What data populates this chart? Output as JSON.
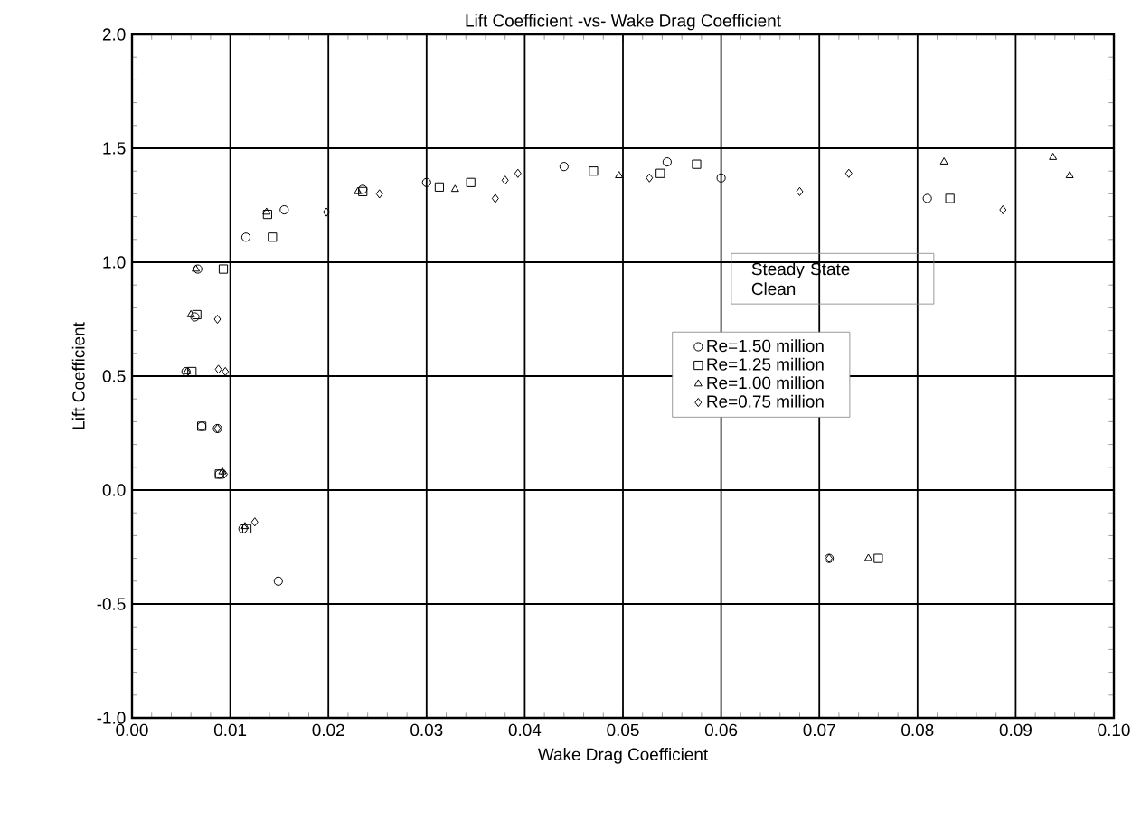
{
  "chart_data": {
    "type": "scatter",
    "title": "Lift Coefficient -vs- Wake Drag Coefficient",
    "xlabel": "Wake Drag Coefficient",
    "ylabel": "Lift Coefficient",
    "annotations": [
      "Steady State\nClean"
    ],
    "xlim": [
      0,
      0.1
    ],
    "ylim": [
      -1.0,
      2.0
    ],
    "xticks": [
      {
        "value": 0,
        "label": "0.00"
      },
      {
        "value": 0.01,
        "label": "0.01"
      },
      {
        "value": 0.02,
        "label": "0.02"
      },
      {
        "value": 0.03,
        "label": "0.03"
      },
      {
        "value": 0.04,
        "label": "0.04"
      },
      {
        "value": 0.05,
        "label": "0.05"
      },
      {
        "value": 0.06,
        "label": "0.06"
      },
      {
        "value": 0.07,
        "label": "0.07"
      },
      {
        "value": 0.08,
        "label": "0.08"
      },
      {
        "value": 0.09,
        "label": "0.09"
      },
      {
        "value": 0.1,
        "label": "0.10"
      }
    ],
    "yticks": [
      {
        "value": -1.0,
        "label": "-1.0"
      },
      {
        "value": -0.5,
        "label": "-0.5"
      },
      {
        "value": 0,
        "label": "0.0"
      },
      {
        "value": 0.5,
        "label": "0.5"
      },
      {
        "value": 1.0,
        "label": "1.0"
      },
      {
        "value": 1.5,
        "label": "1.5"
      },
      {
        "value": 2.0,
        "label": "2.0"
      }
    ],
    "grid": true,
    "legend": "center",
    "series": [
      {
        "name": "Re=1.50 million",
        "color": "#000000",
        "marker": "circle",
        "x": [
          0.0149,
          0.0155,
          0.0116,
          0.03,
          0.044,
          0.0545,
          0.06,
          0.081,
          0.0064,
          0.0067,
          0.0087,
          0.0235,
          0.0055,
          0.0071,
          0.0089,
          0.0113,
          0.071
        ],
        "values": [
          -0.4,
          1.23,
          1.11,
          1.35,
          1.42,
          1.44,
          1.37,
          1.28,
          0.76,
          0.97,
          0.27,
          1.32,
          0.52,
          0.28,
          0.07,
          -0.17,
          -0.3
        ]
      },
      {
        "name": "Re=1.25 million",
        "color": "#000000",
        "marker": "square",
        "x": [
          0.0143,
          0.0093,
          0.0313,
          0.0345,
          0.047,
          0.0538,
          0.0575,
          0.0833,
          0.076,
          0.0138,
          0.0235,
          0.0066,
          0.0061,
          0.0071,
          0.0089,
          0.0117
        ],
        "values": [
          1.11,
          0.97,
          1.33,
          1.35,
          1.4,
          1.39,
          1.43,
          1.28,
          -0.3,
          1.21,
          1.31,
          0.77,
          0.52,
          0.28,
          0.07,
          -0.17
        ]
      },
      {
        "name": "Re=1.00 million",
        "color": "#000000",
        "marker": "triangle",
        "x": [
          0.006,
          0.0065,
          0.0056,
          0.0092,
          0.0115,
          0.0137,
          0.023,
          0.0329,
          0.0496,
          0.0827,
          0.0938,
          0.0955,
          0.075
        ],
        "values": [
          0.77,
          0.97,
          0.52,
          0.08,
          -0.16,
          1.22,
          1.31,
          1.32,
          1.38,
          1.44,
          1.46,
          1.38,
          -0.3
        ]
      },
      {
        "name": "Re=0.75 million",
        "color": "#000000",
        "marker": "diamond",
        "x": [
          0.0087,
          0.0088,
          0.0095,
          0.0087,
          0.0094,
          0.0125,
          0.0198,
          0.0252,
          0.037,
          0.038,
          0.0393,
          0.0527,
          0.068,
          0.073,
          0.0887,
          0.071
        ],
        "values": [
          0.75,
          0.53,
          0.52,
          0.27,
          0.07,
          -0.14,
          1.22,
          1.3,
          1.28,
          1.36,
          1.39,
          1.37,
          1.31,
          1.39,
          1.23,
          -0.3
        ]
      }
    ]
  }
}
